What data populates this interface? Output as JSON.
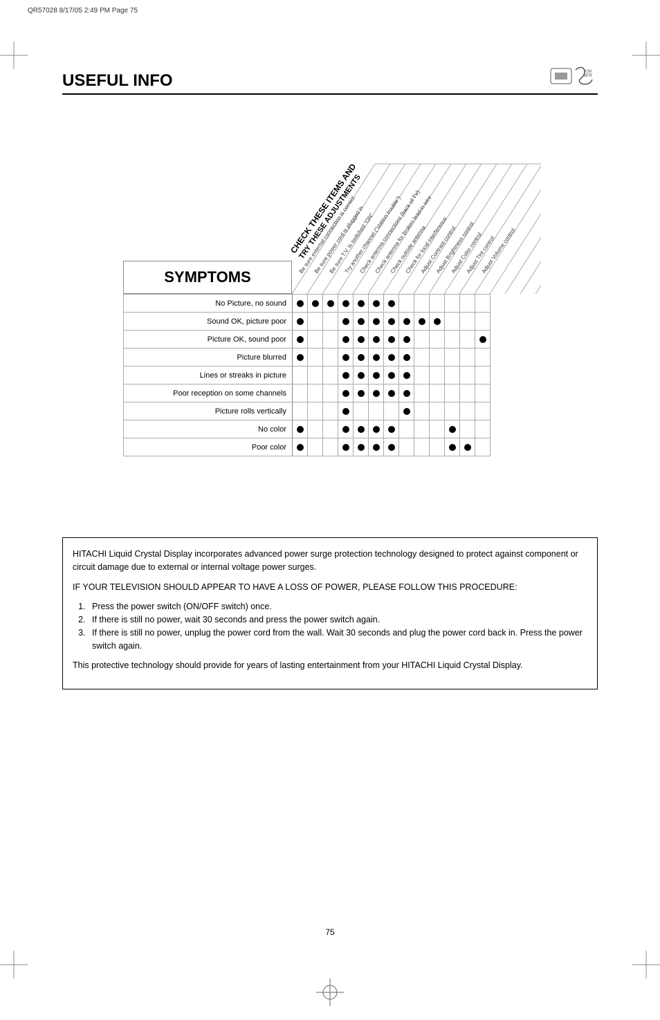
{
  "meta_line": "QR57028  8/17/05  2:49 PM  Page 75",
  "header_title": "USEFUL INFO",
  "big_diag_line1": "CHECK THESE ITEMS AND",
  "big_diag_line2": "TRY THESE ADJUSTMENTS",
  "symptoms_heading": "SYMPTOMS",
  "columns": [
    "Be sure external connection is correct",
    "Be sure power cord is plugged in",
    "Be sure T.V. is switched \"ON\"",
    "Try another channel (\"station trouble\")",
    "Check antenna connections (back of TV)",
    "Check antenna for broken lead-in wire",
    "Check outside antenna",
    "Check for local interference",
    "Adjust Contrast control",
    "Adjust Brightness control",
    "Adjust Color control",
    "Adjust Tint control",
    "Adjust Volume control"
  ],
  "rows": [
    {
      "label": "No Picture, no sound",
      "cells": [
        1,
        1,
        1,
        1,
        1,
        1,
        1,
        0,
        0,
        0,
        0,
        0,
        0
      ]
    },
    {
      "label": "Sound OK, picture poor",
      "cells": [
        1,
        0,
        0,
        1,
        1,
        1,
        1,
        1,
        1,
        1,
        0,
        0,
        0
      ]
    },
    {
      "label": "Picture OK, sound poor",
      "cells": [
        1,
        0,
        0,
        1,
        1,
        1,
        1,
        1,
        0,
        0,
        0,
        0,
        1
      ]
    },
    {
      "label": "Picture blurred",
      "cells": [
        1,
        0,
        0,
        1,
        1,
        1,
        1,
        1,
        0,
        0,
        0,
        0,
        0
      ]
    },
    {
      "label": "Lines or streaks in picture",
      "cells": [
        0,
        0,
        0,
        1,
        1,
        1,
        1,
        1,
        0,
        0,
        0,
        0,
        0
      ]
    },
    {
      "label": "Poor reception on some channels",
      "cells": [
        0,
        0,
        0,
        1,
        1,
        1,
        1,
        1,
        0,
        0,
        0,
        0,
        0
      ]
    },
    {
      "label": "Picture rolls vertically",
      "cells": [
        0,
        0,
        0,
        1,
        0,
        0,
        0,
        1,
        0,
        0,
        0,
        0,
        0
      ]
    },
    {
      "label": "No color",
      "cells": [
        1,
        0,
        0,
        1,
        1,
        1,
        1,
        0,
        0,
        0,
        1,
        0,
        0
      ]
    },
    {
      "label": "Poor color",
      "cells": [
        1,
        0,
        0,
        1,
        1,
        1,
        1,
        0,
        0,
        0,
        1,
        1,
        0
      ]
    }
  ],
  "surge": {
    "p1": "HITACHI Liquid Crystal Display incorporates advanced power surge protection technology designed to protect against component or circuit damage due to external or internal voltage power surges.",
    "p2": "IF YOUR TELEVISION SHOULD APPEAR TO HAVE A LOSS OF POWER, PLEASE FOLLOW THIS PROCEDURE:",
    "steps": [
      "Press the power switch (ON/OFF switch) once.",
      "If there is still no power, wait 30 seconds and press the power switch again.",
      "If there is still no power, unplug the power cord from the wall. Wait 30 seconds and plug the power cord back in. Press the power switch again."
    ],
    "p3": "This protective technology should provide for years of lasting entertainment from your HITACHI Liquid Crystal Display."
  },
  "page_number": "75",
  "colors": {
    "text": "#000000",
    "border": "#aaaaaa",
    "dot": "#000000"
  }
}
